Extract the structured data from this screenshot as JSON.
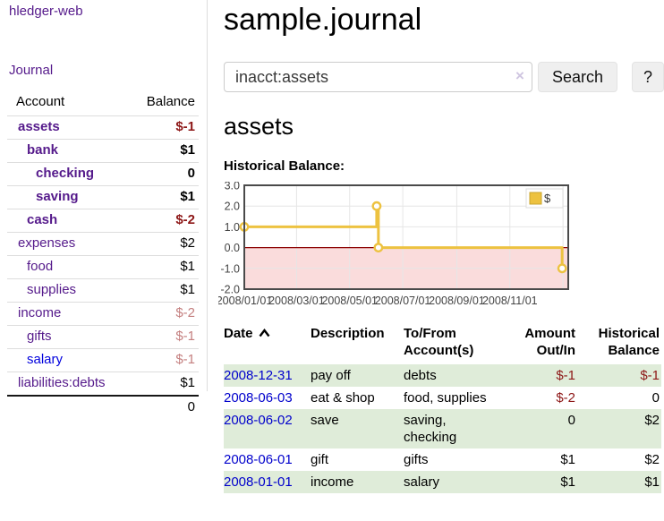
{
  "app": {
    "brand": "hledger-web",
    "nav_journal_label": "Journal"
  },
  "sidebar": {
    "header": {
      "account": "Account",
      "balance": "Balance"
    },
    "rows": [
      {
        "name": "assets",
        "balance": "$-1",
        "level": 0,
        "bold": true,
        "neg": "strong"
      },
      {
        "name": "bank",
        "balance": "$1",
        "level": 1,
        "bold": true,
        "neg": "none"
      },
      {
        "name": "checking",
        "balance": "0",
        "level": 2,
        "bold": true,
        "neg": "none"
      },
      {
        "name": "saving",
        "balance": "$1",
        "level": 2,
        "bold": true,
        "neg": "none"
      },
      {
        "name": "cash",
        "balance": "$-2",
        "level": 1,
        "bold": true,
        "neg": "strong"
      },
      {
        "name": "expenses",
        "balance": "$2",
        "level": 0,
        "bold": false,
        "neg": "none"
      },
      {
        "name": "food",
        "balance": "$1",
        "level": 1,
        "bold": false,
        "neg": "none"
      },
      {
        "name": "supplies",
        "balance": "$1",
        "level": 1,
        "bold": false,
        "neg": "none"
      },
      {
        "name": "income",
        "balance": "$-2",
        "level": 0,
        "bold": false,
        "neg": "soft"
      },
      {
        "name": "gifts",
        "balance": "$-1",
        "level": 1,
        "bold": false,
        "neg": "soft"
      },
      {
        "name": "salary",
        "balance": "$-1",
        "level": 1,
        "bold": false,
        "neg": "soft",
        "link_color": "blue"
      },
      {
        "name": "liabilities:debts",
        "balance": "$1",
        "level": 0,
        "bold": false,
        "neg": "none"
      }
    ],
    "total": "0"
  },
  "header": {
    "title": "sample.journal"
  },
  "search": {
    "value": "inacct:assets",
    "clear_icon": "×",
    "button_label": "Search",
    "help_label": "?"
  },
  "account_page": {
    "heading": "assets",
    "chart_label": "Historical Balance:"
  },
  "chart_data": {
    "type": "line",
    "step": true,
    "title": "Historical Balance",
    "legend": {
      "label": "$",
      "position": "top-right"
    },
    "x_start_date": "2008-01-01",
    "x_domain_days": 372,
    "ylim": [
      -2.0,
      3.0
    ],
    "y_ticks": [
      {
        "v": 3.0,
        "label": "3.0"
      },
      {
        "v": 2.0,
        "label": "2.0"
      },
      {
        "v": 1.0,
        "label": "1.0"
      },
      {
        "v": 0.0,
        "label": "0.0"
      },
      {
        "v": -1.0,
        "label": "-1.0"
      },
      {
        "v": -2.0,
        "label": "-2.0"
      }
    ],
    "x_ticks": [
      {
        "date": "2008-01-01",
        "label": "2008/01/01"
      },
      {
        "date": "2008-03-01",
        "label": "2008/03/01"
      },
      {
        "date": "2008-05-01",
        "label": "2008/05/01"
      },
      {
        "date": "2008-07-01",
        "label": "2008/07/01"
      },
      {
        "date": "2008-09-01",
        "label": "2008/09/01"
      },
      {
        "date": "2008-11-01",
        "label": "2008/11/01"
      },
      {
        "date": "2009-01-01",
        "label": ""
      }
    ],
    "series": [
      {
        "name": "$",
        "color": "#edc240",
        "points": [
          [
            "2008-01-01",
            1.0
          ],
          [
            "2008-06-01",
            2.0
          ],
          [
            "2008-06-03",
            0.0
          ],
          [
            "2008-12-31",
            -1.0
          ]
        ]
      }
    ],
    "grid_on": true,
    "grid_color": "#e6e6e6",
    "border_color": "#4a4a4a",
    "negative_region_color": "#fadcdc",
    "zero_line_color": "#8b0000",
    "marker_fill": "#ffffff"
  },
  "register": {
    "columns": [
      {
        "label": "Date",
        "align": "left",
        "sorted_asc": true
      },
      {
        "label": "Description",
        "align": "left"
      },
      {
        "label": "To/From Account(s)",
        "align": "left"
      },
      {
        "label": "Amount Out/In",
        "align": "right"
      },
      {
        "label": "Historical Balance",
        "align": "right"
      }
    ],
    "rows": [
      {
        "date": "2008-12-31",
        "description": "pay off",
        "accounts": "debts",
        "amount": "$-1",
        "balance": "$-1",
        "amount_neg": true,
        "balance_neg": true,
        "shaded": true
      },
      {
        "date": "2008-06-03",
        "description": "eat & shop",
        "accounts": "food, supplies",
        "amount": "$-2",
        "balance": "0",
        "amount_neg": true,
        "balance_neg": false,
        "shaded": false
      },
      {
        "date": "2008-06-02",
        "description": "save",
        "accounts": "saving, checking",
        "amount": "0",
        "balance": "$2",
        "amount_neg": false,
        "balance_neg": false,
        "shaded": true
      },
      {
        "date": "2008-06-01",
        "description": "gift",
        "accounts": "gifts",
        "amount": "$1",
        "balance": "$2",
        "amount_neg": false,
        "balance_neg": false,
        "shaded": false
      },
      {
        "date": "2008-01-01",
        "description": "income",
        "accounts": "salary",
        "amount": "$1",
        "balance": "$1",
        "amount_neg": false,
        "balance_neg": false,
        "shaded": true
      }
    ]
  }
}
